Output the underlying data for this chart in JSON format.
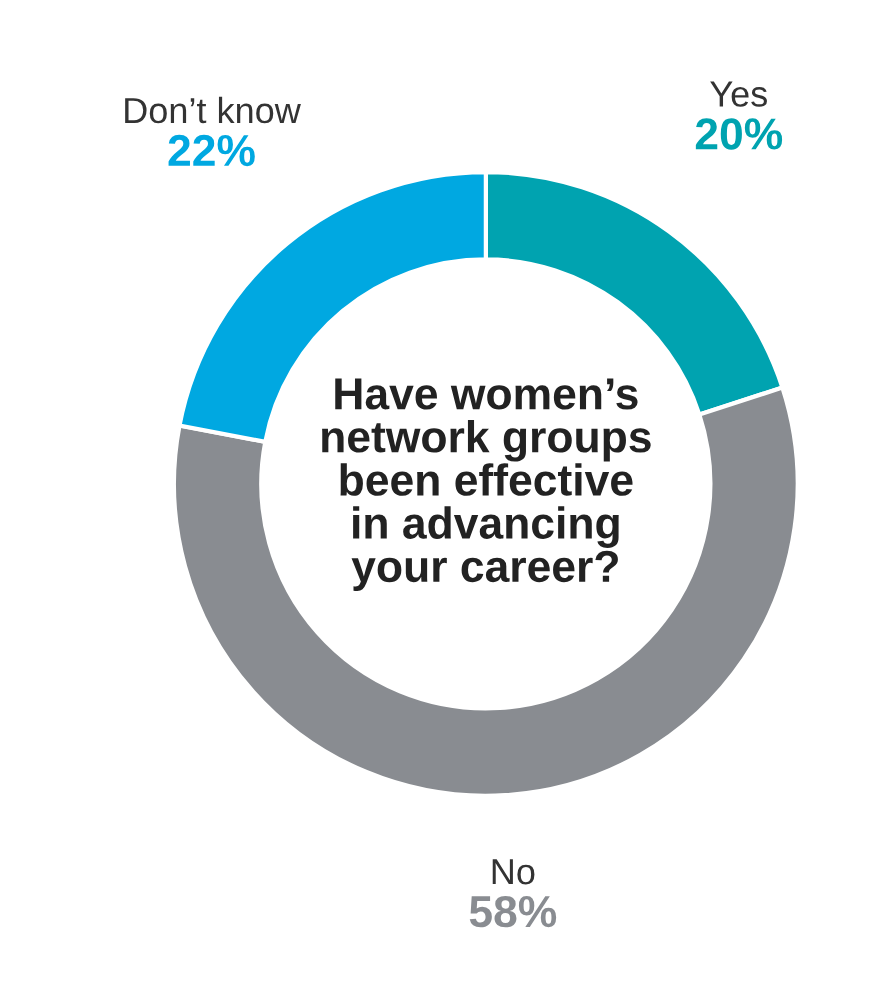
{
  "chart_data": {
    "type": "donut",
    "title": "Have women’s\nnetwork groups\nbeen effective\nin advancing\nyour career?",
    "categories": [
      "Yes",
      "No",
      "Don’t know"
    ],
    "values": [
      20,
      58,
      22
    ],
    "colors": [
      "#00a3b0",
      "#898c91",
      "#00a8e1"
    ],
    "value_labels": [
      "20%",
      "58%",
      "22%"
    ],
    "legend": false
  }
}
